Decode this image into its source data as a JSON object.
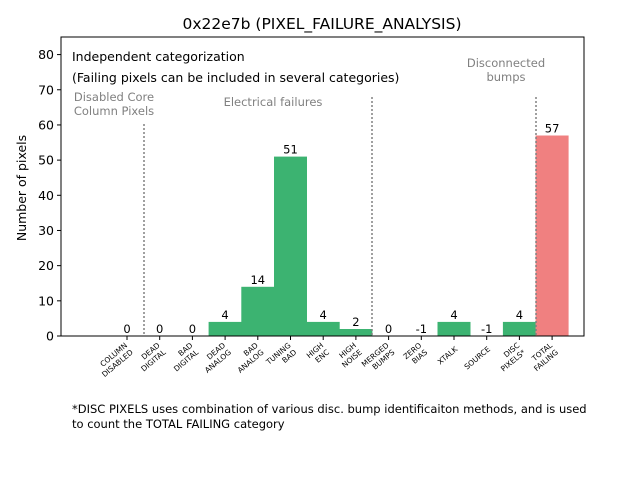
{
  "chart_data": {
    "type": "bar",
    "title": "0x22e7b (PIXEL_FAILURE_ANALYSIS)",
    "xlabel": "",
    "ylabel": "Number of pixels",
    "ylim": [
      0,
      85
    ],
    "yticks": [
      0,
      10,
      20,
      30,
      40,
      50,
      60,
      70,
      80
    ],
    "grid": false,
    "categories": [
      "COLUMN\nDISABLED",
      "DEAD\nDIGITAL",
      "BAD\nDIGITAL",
      "DEAD\nANALOG",
      "BAD\nANALOG",
      "TUNING\nBAD",
      "HIGH\nENC",
      "HIGH\nNOISE",
      "MERGED\nBUMPS",
      "ZERO\nBIAS",
      "XTALK",
      "SOURCE",
      "DISC\nPIXELS*",
      "TOTAL\nFAILING"
    ],
    "values": [
      0,
      0,
      0,
      4,
      14,
      51,
      4,
      2,
      0,
      -1,
      4,
      -1,
      4,
      57
    ],
    "bar_colors": [
      "#3cb371",
      "#3cb371",
      "#3cb371",
      "#3cb371",
      "#3cb371",
      "#3cb371",
      "#3cb371",
      "#3cb371",
      "#3cb371",
      "#3cb371",
      "#3cb371",
      "#3cb371",
      "#3cb371",
      "#f08080"
    ],
    "annotations": {
      "info_line1": "Independent categorization",
      "info_line2": "(Failing pixels can be included in several categories)",
      "group_core": "Disabled Core\nColumn Pixels",
      "group_electrical": "Electrical failures",
      "group_disconnected": "Disconnected\nbumps"
    },
    "group_label_color": "#808080",
    "divider_color": "#808080"
  },
  "footnote": "*DISC PIXELS uses combination of various disc. bump identificaiton methods, and is used\nto count the TOTAL FAILING category"
}
